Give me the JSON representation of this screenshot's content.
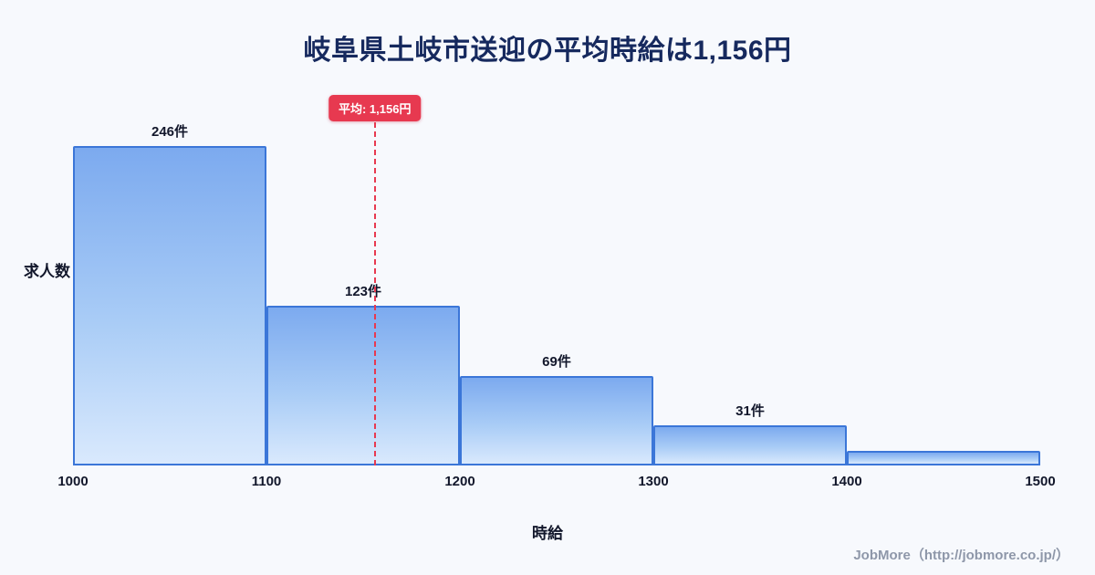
{
  "chart_data": {
    "type": "bar",
    "title": "岐阜県土岐市送迎の平均時給は1,156円",
    "xlabel": "時給",
    "ylabel": "求人数",
    "bin_edges": [
      1000,
      1100,
      1200,
      1300,
      1400,
      1500
    ],
    "tick_labels": [
      "1000",
      "1100",
      "1200",
      "1300",
      "1400",
      "1500"
    ],
    "values": [
      246,
      123,
      69,
      31,
      11
    ],
    "bar_labels": [
      "246件",
      "123件",
      "69件",
      "31件",
      ""
    ],
    "x_range": [
      1000,
      1500
    ],
    "average": 1156,
    "average_label": "平均: 1,156円",
    "legend": "none",
    "grid": "off",
    "colors": {
      "background": "#f7f9fd",
      "bar_fill_top": "#7caaef",
      "bar_fill_bottom": "#d9e9fd",
      "bar_border": "#3b76d8",
      "average_marker": "#e73950",
      "title_text": "#16295e",
      "axis_text": "#12172b",
      "footer_text": "#8e97a9"
    }
  },
  "footer": {
    "credit": "JobMore（http://jobmore.co.jp/）"
  }
}
